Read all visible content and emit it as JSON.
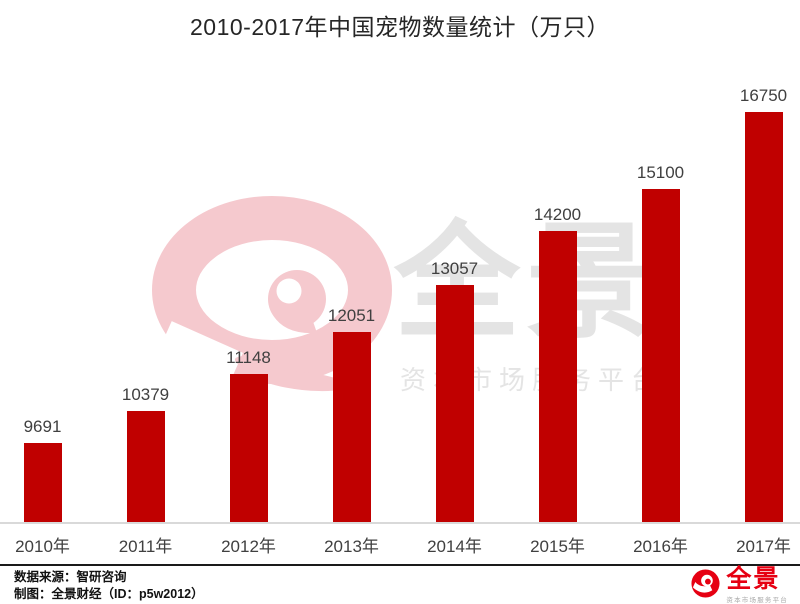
{
  "chart_data": {
    "type": "bar",
    "title": "2010-2017年中国宠物数量统计（万只）",
    "categories": [
      "2010年",
      "2011年",
      "2012年",
      "2013年",
      "2014年",
      "2015年",
      "2016年",
      "2017年"
    ],
    "values": [
      9691,
      10379,
      11148,
      12051,
      13057,
      14200,
      15100,
      16750
    ],
    "xlabel": "",
    "ylabel": "",
    "ylim": [
      8000,
      17000
    ],
    "grid": false,
    "legend": false,
    "value_labels_shown": true,
    "bar_color": "#C00000"
  },
  "watermark": {
    "brand": "全景",
    "tagline": "资本市场服务平台"
  },
  "footer": {
    "source": "数据来源：智研咨询",
    "credit": "制图：全景财经（ID：p5w2012）",
    "logo_text": "全景",
    "logo_tagline": "资本市场服务平台"
  },
  "colors": {
    "bar": "#C00000",
    "axis_line": "#D9D9D9",
    "label_text": "#404040",
    "title_text": "#262626",
    "watermark_pink": "#F5C9CE",
    "watermark_gray": "#E4E4E4",
    "logo_red": "#E60012",
    "footer_text": "#111111"
  }
}
